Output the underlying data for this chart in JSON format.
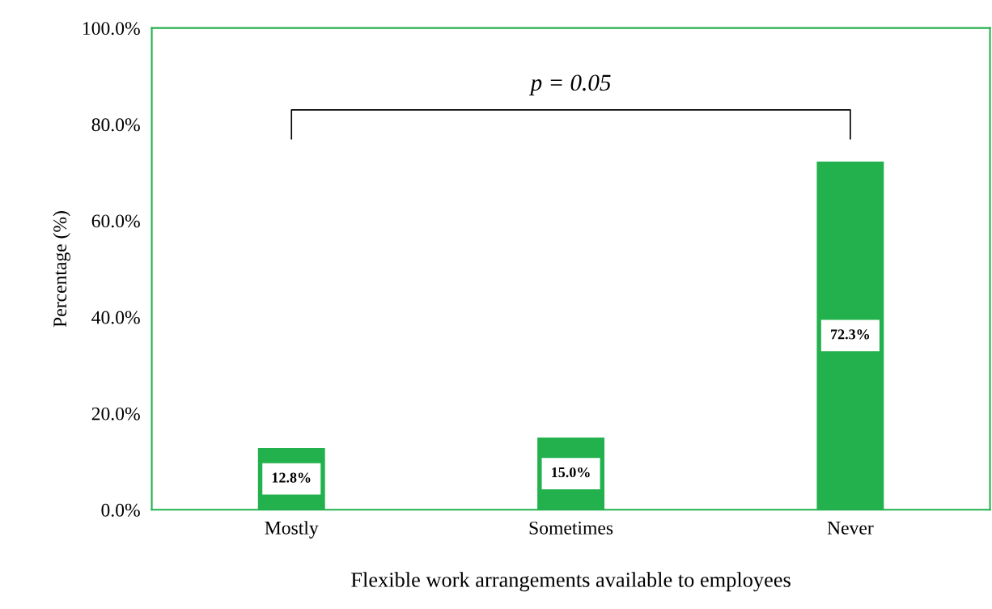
{
  "chart_data": {
    "type": "bar",
    "xlabel": "Flexible work arrangements available to employees",
    "ylabel": "Percentage (%)",
    "categories": [
      "Mostly",
      "Sometimes",
      "Never"
    ],
    "values": [
      12.8,
      15.0,
      72.3
    ],
    "value_labels": [
      "12.8%",
      "15.0%",
      "72.3%"
    ],
    "color": "#22b14c",
    "ylim": [
      0,
      100
    ],
    "yticks": [
      {
        "value": 0,
        "label": "0.0%"
      },
      {
        "value": 20,
        "label": "20.0%"
      },
      {
        "value": 40,
        "label": "40.0%"
      },
      {
        "value": 60,
        "label": "60.0%"
      },
      {
        "value": 80,
        "label": "80.0%"
      },
      {
        "value": 100,
        "label": "100.0%"
      }
    ],
    "grid": false,
    "annotations": [
      "p = 0.05"
    ]
  }
}
